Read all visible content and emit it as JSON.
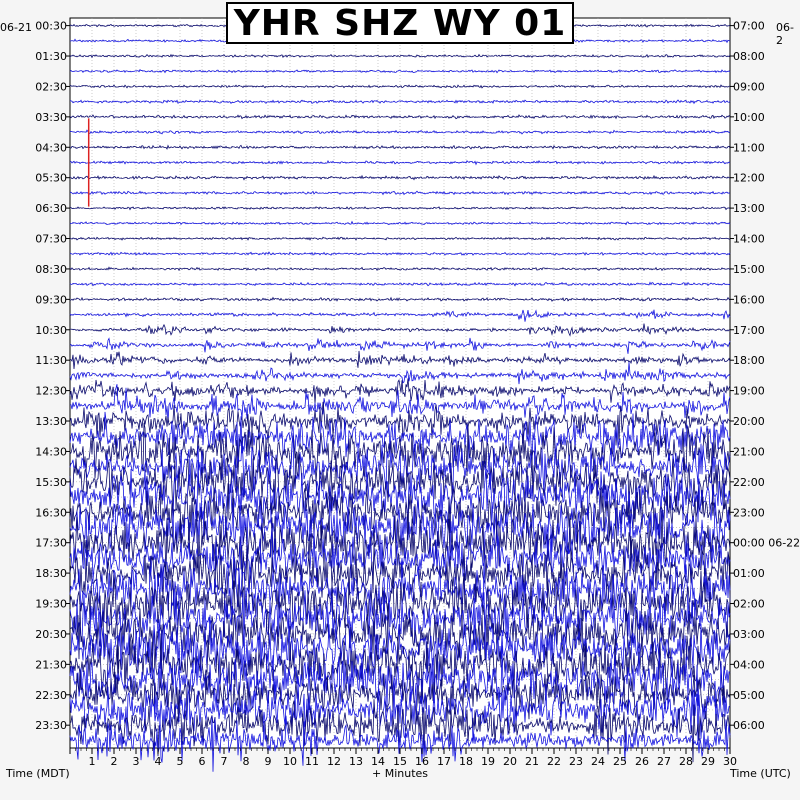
{
  "chart_data": {
    "type": "helicorder",
    "title": "YHR SHZ WY 01",
    "left_axis_label": "Time (MDT)",
    "right_axis_label": "Time (UTC)",
    "x_axis_label": "+ Minutes",
    "left_date": "06-21",
    "right_date": "06-2",
    "right_date_rollover": "06-22",
    "minutes_per_line": 30,
    "x_ticks": [
      "1",
      "2",
      "3",
      "4",
      "5",
      "6",
      "7",
      "8",
      "9",
      "10",
      "11",
      "12",
      "13",
      "14",
      "15",
      "16",
      "17",
      "18",
      "19",
      "20",
      "21",
      "22",
      "23",
      "24",
      "25",
      "26",
      "27",
      "28",
      "29",
      "30"
    ],
    "lines_per_label": 2,
    "left_time_labels": [
      "00:30",
      "01:30",
      "02:30",
      "03:30",
      "04:30",
      "05:30",
      "06:30",
      "07:30",
      "08:30",
      "09:30",
      "10:30",
      "11:30",
      "12:30",
      "13:30",
      "14:30",
      "15:30",
      "16:30",
      "17:30",
      "18:30",
      "19:30",
      "20:30",
      "21:30",
      "22:30",
      "23:30"
    ],
    "right_time_labels": [
      "07:00",
      "08:00",
      "09:00",
      "10:00",
      "11:00",
      "12:00",
      "13:00",
      "14:00",
      "15:00",
      "16:00",
      "17:00",
      "18:00",
      "19:00",
      "20:00",
      "21:00",
      "22:00",
      "23:00",
      "00:00 06-22",
      "01:00",
      "02:00",
      "03:00",
      "04:00",
      "05:00",
      "06:00"
    ],
    "trace_colors": [
      "#0a0a6e",
      "#1515e0"
    ],
    "red_marker_color": "#dd2222",
    "activity_profile": [
      1,
      1,
      1,
      1,
      1,
      1.2,
      1.3,
      1.2,
      1.2,
      1.2,
      1.3,
      1.2,
      1,
      1,
      1,
      1.1,
      1.1,
      1.2,
      1.3,
      1.4,
      1.5,
      1.6,
      1.8,
      2.2,
      3,
      3.5,
      5,
      6,
      7,
      9,
      10,
      11,
      11,
      12,
      12,
      11,
      11,
      11,
      12,
      12,
      13,
      13,
      12,
      12,
      10,
      9,
      7,
      5,
      3,
      2.2,
      1.8,
      1.5,
      1.3,
      1.3,
      1.2,
      1.2,
      1.2,
      1.2,
      1.2
    ]
  }
}
